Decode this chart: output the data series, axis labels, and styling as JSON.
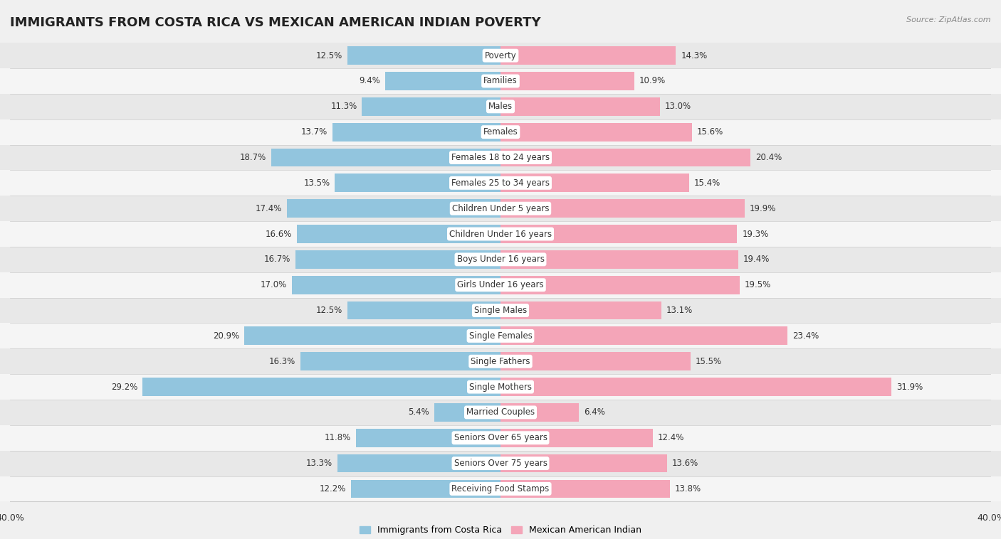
{
  "title": "IMMIGRANTS FROM COSTA RICA VS MEXICAN AMERICAN INDIAN POVERTY",
  "source": "Source: ZipAtlas.com",
  "categories": [
    "Poverty",
    "Families",
    "Males",
    "Females",
    "Females 18 to 24 years",
    "Females 25 to 34 years",
    "Children Under 5 years",
    "Children Under 16 years",
    "Boys Under 16 years",
    "Girls Under 16 years",
    "Single Males",
    "Single Females",
    "Single Fathers",
    "Single Mothers",
    "Married Couples",
    "Seniors Over 65 years",
    "Seniors Over 75 years",
    "Receiving Food Stamps"
  ],
  "left_values": [
    12.5,
    9.4,
    11.3,
    13.7,
    18.7,
    13.5,
    17.4,
    16.6,
    16.7,
    17.0,
    12.5,
    20.9,
    16.3,
    29.2,
    5.4,
    11.8,
    13.3,
    12.2
  ],
  "right_values": [
    14.3,
    10.9,
    13.0,
    15.6,
    20.4,
    15.4,
    19.9,
    19.3,
    19.4,
    19.5,
    13.1,
    23.4,
    15.5,
    31.9,
    6.4,
    12.4,
    13.6,
    13.8
  ],
  "left_color": "#92c5de",
  "right_color": "#f4a5b8",
  "background_color": "#f0f0f0",
  "row_color_even": "#e8e8e8",
  "row_color_odd": "#f5f5f5",
  "xlim": 40.0,
  "legend_left": "Immigrants from Costa Rica",
  "legend_right": "Mexican American Indian",
  "title_fontsize": 13,
  "label_fontsize": 8.5,
  "value_fontsize": 8.5
}
